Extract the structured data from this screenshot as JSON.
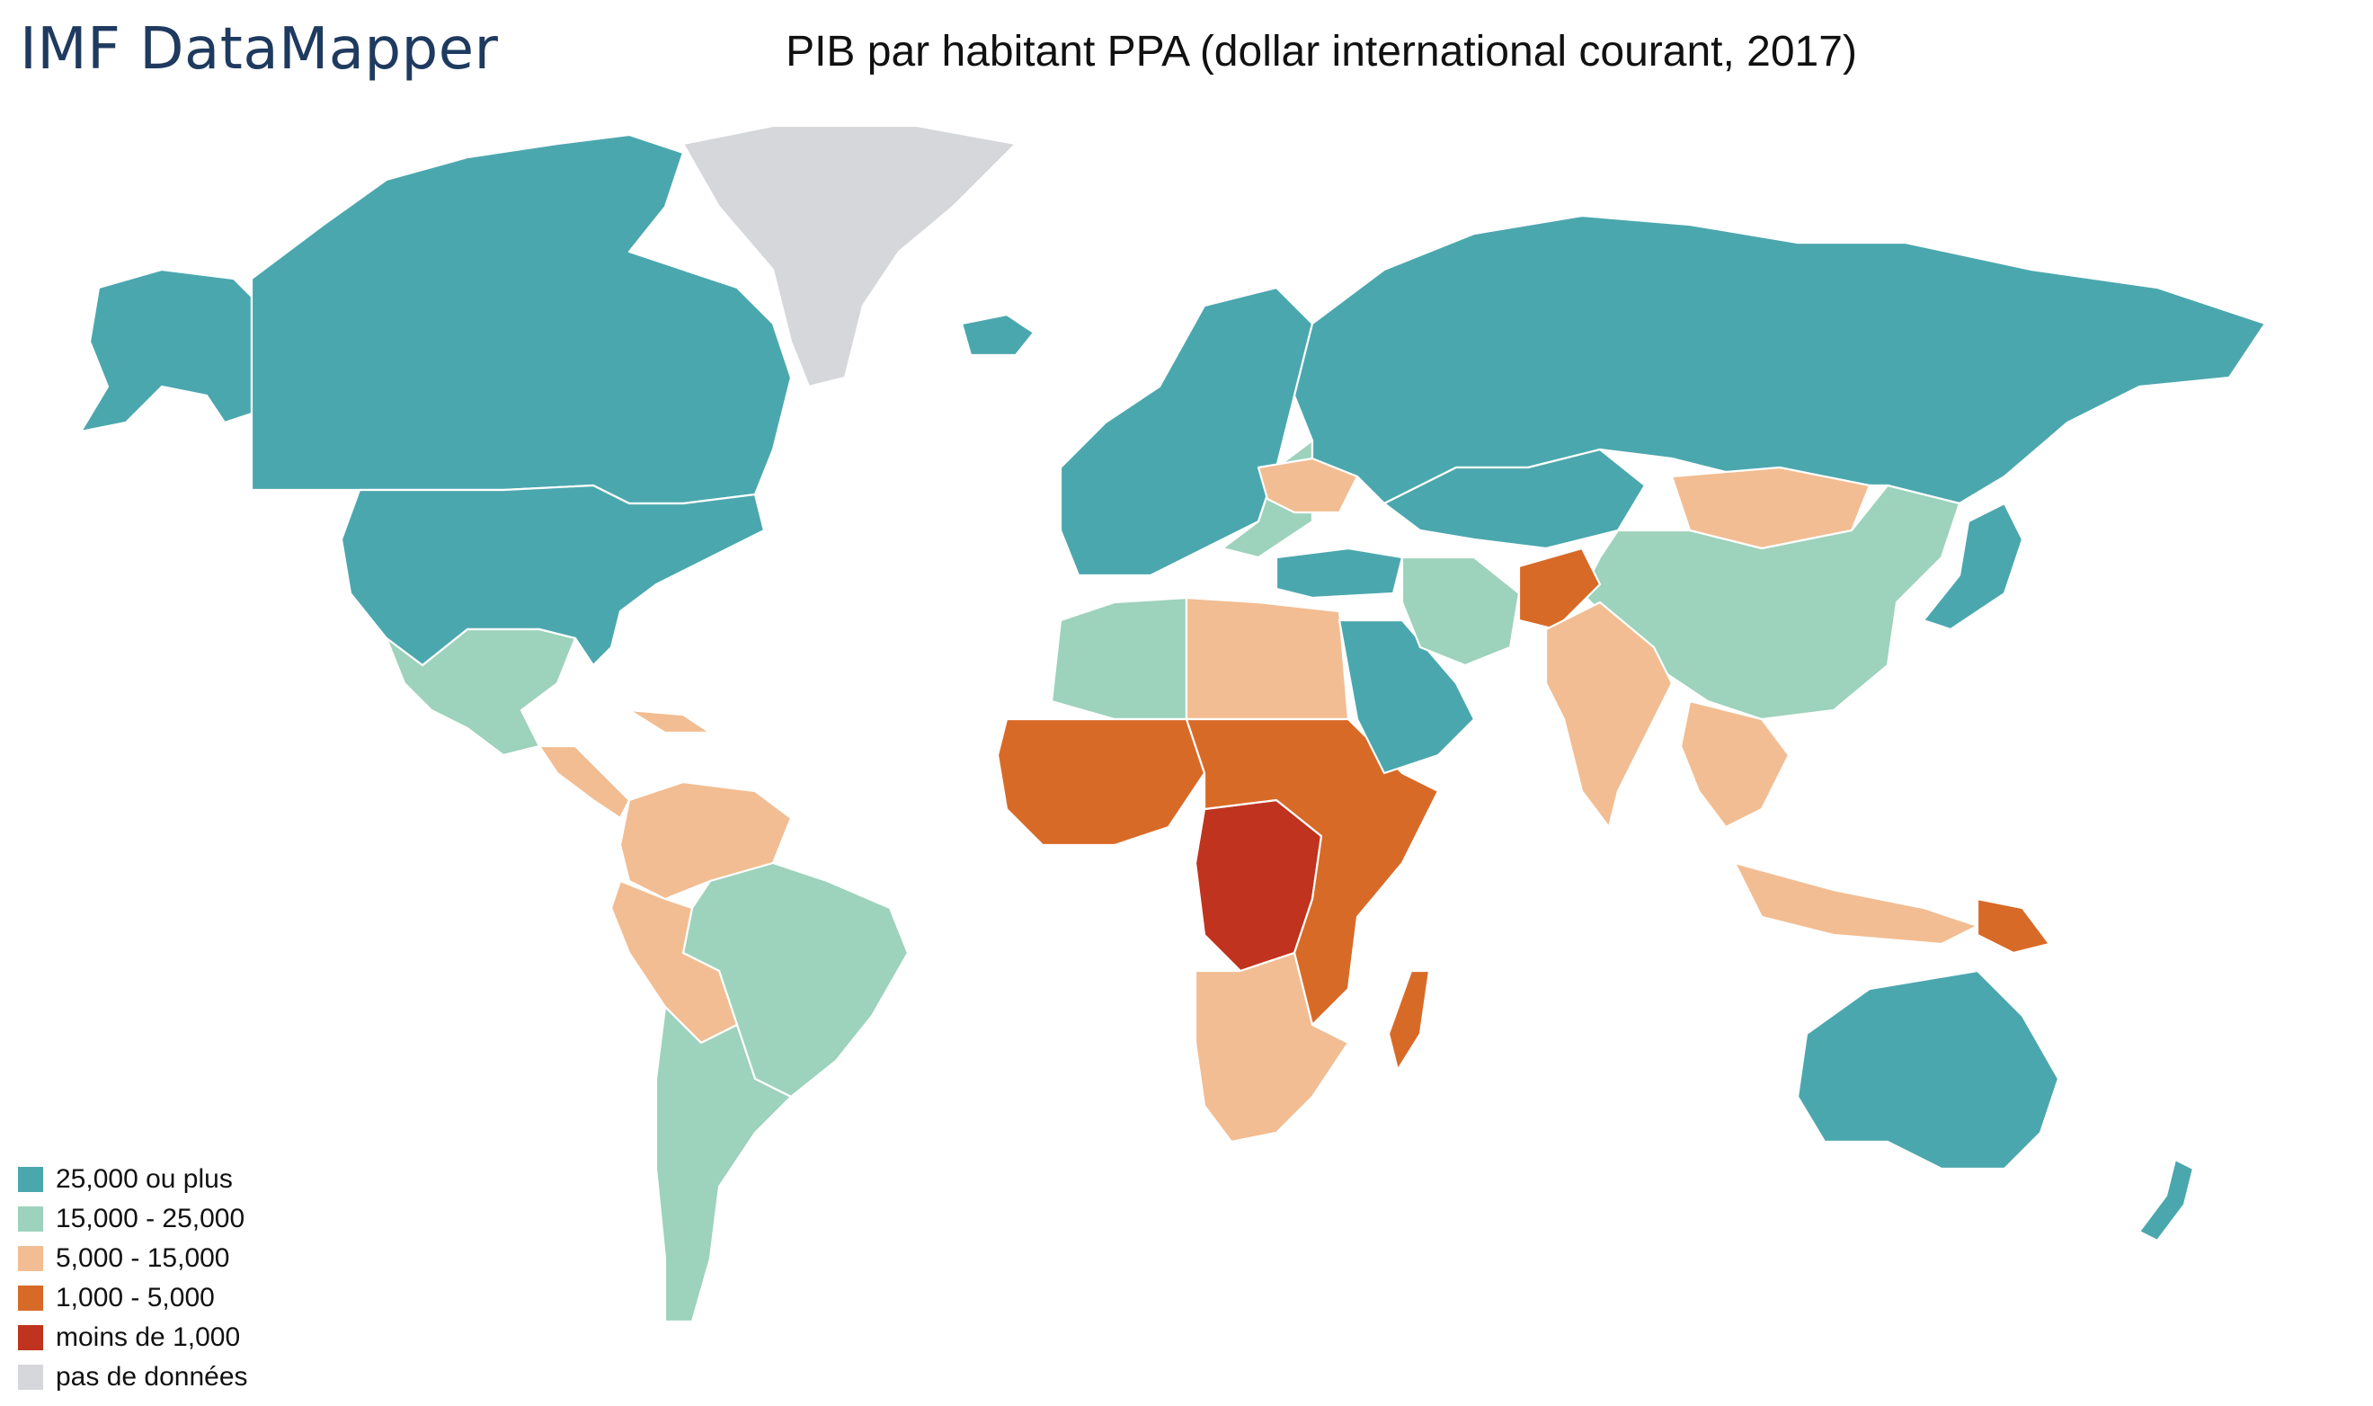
{
  "header": {
    "brand": "IMF DataMapper",
    "title": "PIB par habitant PPA (dollar international courant, 2017)"
  },
  "legend": {
    "items": [
      {
        "label": "25,000 ou plus",
        "color": "#4ba7ae"
      },
      {
        "label": "15,000 - 25,000",
        "color": "#9dd2bc"
      },
      {
        "label": "5,000 - 15,000",
        "color": "#f2bd92"
      },
      {
        "label": "1,000 - 5,000",
        "color": "#d86a27"
      },
      {
        "label": "moins de 1,000",
        "color": "#c0331e"
      },
      {
        "label": "pas de données",
        "color": "#d6d7da"
      }
    ]
  },
  "map": {
    "regions": [
      {
        "name": "alaska",
        "band": 0
      },
      {
        "name": "canada",
        "band": 0
      },
      {
        "name": "united-states",
        "band": 0
      },
      {
        "name": "greenland",
        "band": 5
      },
      {
        "name": "iceland",
        "band": 0
      },
      {
        "name": "mexico",
        "band": 1
      },
      {
        "name": "central-america",
        "band": 2
      },
      {
        "name": "caribbean",
        "band": 2
      },
      {
        "name": "colombia-venezuela",
        "band": 2
      },
      {
        "name": "brazil",
        "band": 1
      },
      {
        "name": "peru-bolivia",
        "band": 2
      },
      {
        "name": "southern-cone",
        "band": 1
      },
      {
        "name": "western-europe",
        "band": 0
      },
      {
        "name": "eastern-europe",
        "band": 1
      },
      {
        "name": "ukraine",
        "band": 2
      },
      {
        "name": "russia",
        "band": 0
      },
      {
        "name": "kazakhstan",
        "band": 0
      },
      {
        "name": "turkey",
        "band": 0
      },
      {
        "name": "mongolia",
        "band": 2
      },
      {
        "name": "china",
        "band": 1
      },
      {
        "name": "korea-japan",
        "band": 0
      },
      {
        "name": "north-africa",
        "band": 1
      },
      {
        "name": "egypt-libya",
        "band": 2
      },
      {
        "name": "west-africa",
        "band": 3
      },
      {
        "name": "central-africa",
        "band": 4
      },
      {
        "name": "east-africa",
        "band": 3
      },
      {
        "name": "southern-africa",
        "band": 2
      },
      {
        "name": "madagascar",
        "band": 3
      },
      {
        "name": "arabia",
        "band": 0
      },
      {
        "name": "iran",
        "band": 1
      },
      {
        "name": "afghanistan",
        "band": 3
      },
      {
        "name": "india",
        "band": 2
      },
      {
        "name": "southeast-asia",
        "band": 2
      },
      {
        "name": "indonesia",
        "band": 2
      },
      {
        "name": "papua-new-guinea",
        "band": 3
      },
      {
        "name": "australia",
        "band": 0
      },
      {
        "name": "new-zealand",
        "band": 0
      }
    ]
  }
}
